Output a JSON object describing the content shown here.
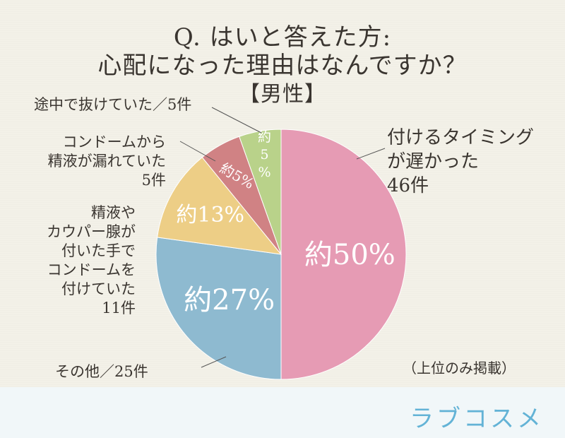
{
  "title": {
    "line1": "Q. はいと答えた方:",
    "line2": "心配になった理由はなんですか？",
    "line3": "【男性】"
  },
  "note": "（上位のみ掲載）",
  "logo": "ラブコスメ",
  "labels": {
    "late": [
      "付けるタイミング",
      "が遅かった",
      "46件"
    ],
    "other": "その他／25件",
    "fluid": [
      "精液や",
      "カウパー腺が",
      "付いた手で",
      "コンドームを",
      "付けていた",
      "11件"
    ],
    "leak": [
      "コンドームから",
      "精液が漏れていた",
      "5件"
    ],
    "slip": "途中で抜けていた／5件"
  },
  "chart_data": {
    "type": "pie",
    "title": "Q. はいと答えた方: 心配になった理由はなんですか？【男性】",
    "categories": [
      "付けるタイミングが遅かった",
      "その他",
      "精液やカウパー腺が付いた手でコンドームを付けていた",
      "コンドームから精液が漏れていた",
      "途中で抜けていた"
    ],
    "values": [
      46,
      25,
      11,
      5,
      5
    ],
    "percent_labels": [
      "約50%",
      "約27%",
      "約13%",
      "約5%",
      "約\n5\n%"
    ],
    "colors": [
      "#e69bb4",
      "#8ebad0",
      "#edce86",
      "#d08284",
      "#b9d28a"
    ]
  }
}
